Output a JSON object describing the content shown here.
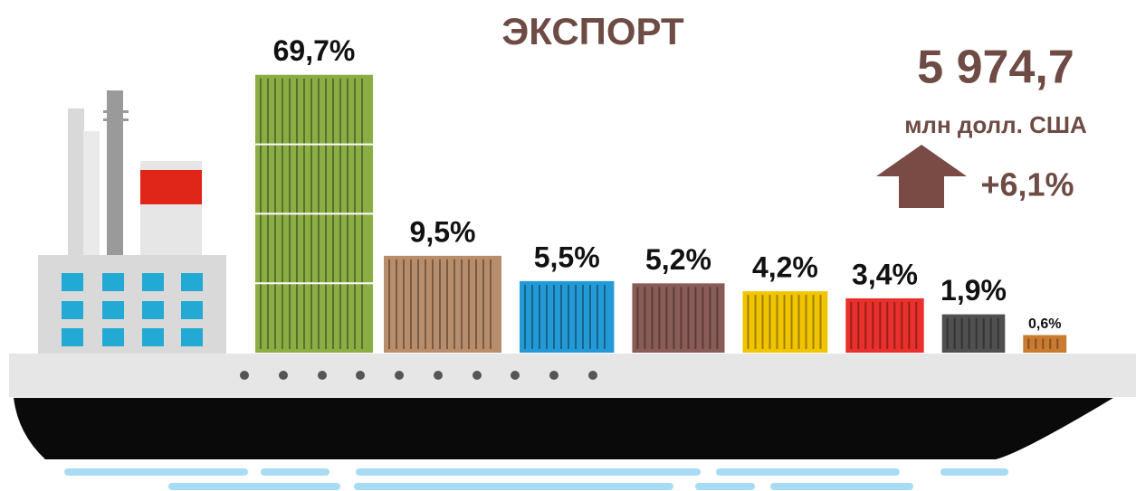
{
  "chart_data": {
    "type": "bar",
    "title": "ЭКСПОРТ",
    "categories": [
      null,
      null,
      null,
      null,
      null,
      null,
      null,
      null
    ],
    "values": [
      69.7,
      9.5,
      5.5,
      5.2,
      4.2,
      3.4,
      1.9,
      0.6
    ],
    "value_labels": [
      "69,7%",
      "9,5%",
      "5,5%",
      "5,2%",
      "4,2%",
      "3,4%",
      "1,9%",
      "0,6%"
    ],
    "colors": [
      "#8aad44",
      "#b88d6b",
      "#239ad6",
      "#8a5c57",
      "#f1c400",
      "#e8302c",
      "#505050",
      "#c97c30"
    ],
    "annotations": [
      "5 974,7",
      "млн долл. США",
      "+6,1%"
    ]
  }
}
